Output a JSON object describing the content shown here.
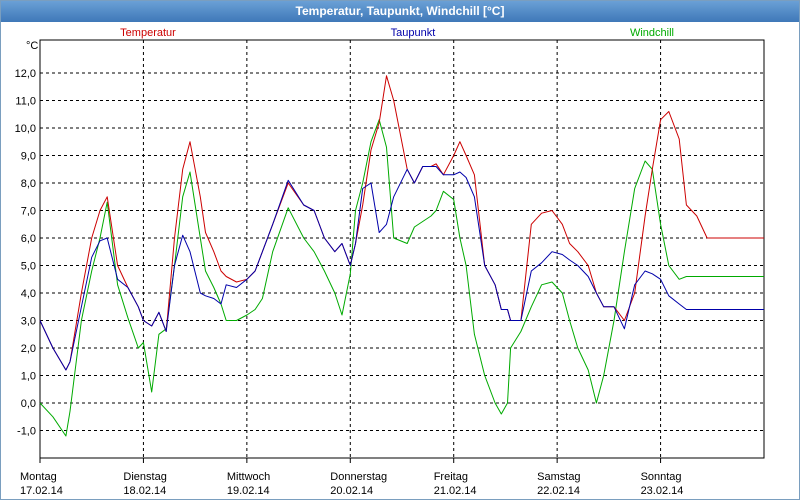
{
  "window": {
    "title": "Temperatur, Taupunkt, Windchill [°C]"
  },
  "chart_data": {
    "type": "line",
    "title": "Temperatur, Taupunkt, Windchill [°C]",
    "ylabel": "°C",
    "ylim": [
      -2.0,
      13.2
    ],
    "grid": true,
    "y_ticks": [
      "12,0",
      "11,0",
      "10,0",
      "9,0",
      "8,0",
      "7,0",
      "6,0",
      "5,0",
      "4,0",
      "3,0",
      "2,0",
      "1,0",
      "0,0",
      "-1,0"
    ],
    "x_range_days": [
      0,
      7
    ],
    "days": [
      {
        "day": "Montag",
        "date": "17.02.14"
      },
      {
        "day": "Dienstag",
        "date": "18.02.14"
      },
      {
        "day": "Mittwoch",
        "date": "19.02.14"
      },
      {
        "day": "Donnerstag",
        "date": "20.02.14"
      },
      {
        "day": "Freitag",
        "date": "21.02.14"
      },
      {
        "day": "Samstag",
        "date": "22.02.14"
      },
      {
        "day": "Sonntag",
        "date": "23.02.14"
      }
    ],
    "series": [
      {
        "name": "Temperatur",
        "color": "#cc0000",
        "x": [
          0.0,
          0.125,
          0.25,
          0.29,
          0.4,
          0.5,
          0.58,
          0.65,
          0.75,
          0.85,
          0.95,
          1.0,
          1.08,
          1.15,
          1.22,
          1.3,
          1.38,
          1.45,
          1.55,
          1.6,
          1.68,
          1.75,
          1.8,
          1.9,
          2.0,
          2.08,
          2.15,
          2.25,
          2.4,
          2.55,
          2.65,
          2.75,
          2.85,
          2.92,
          3.0,
          3.05,
          3.12,
          3.2,
          3.28,
          3.35,
          3.42,
          3.55,
          3.62,
          3.7,
          3.78,
          3.83,
          3.9,
          4.0,
          4.06,
          4.12,
          4.2,
          4.3,
          4.4,
          4.46,
          4.52,
          4.55,
          4.65,
          4.75,
          4.85,
          4.95,
          5.05,
          5.12,
          5.2,
          5.3,
          5.38,
          5.45,
          5.55,
          5.65,
          5.75,
          5.85,
          5.92,
          6.0,
          6.08,
          6.18,
          6.25,
          6.35,
          6.45,
          6.55,
          6.65,
          6.75,
          6.82,
          6.9,
          7.0
        ],
        "y": [
          3.0,
          2.0,
          1.2,
          1.5,
          4.0,
          6.0,
          7.0,
          7.5,
          5.0,
          4.2,
          3.5,
          3.0,
          2.8,
          3.3,
          2.6,
          6.0,
          8.5,
          9.5,
          7.5,
          6.2,
          5.5,
          4.8,
          4.6,
          4.4,
          4.5,
          4.8,
          5.5,
          6.5,
          8.0,
          7.2,
          7.0,
          6.0,
          5.5,
          5.8,
          5.0,
          5.8,
          7.2,
          9.2,
          10.2,
          11.9,
          11.0,
          8.5,
          8.0,
          8.6,
          8.6,
          8.7,
          8.3,
          9.0,
          9.5,
          9.0,
          8.3,
          5.0,
          4.3,
          3.4,
          3.4,
          3.0,
          3.0,
          6.5,
          6.9,
          7.0,
          6.5,
          5.8,
          5.5,
          5.0,
          4.0,
          3.5,
          3.5,
          3.0,
          4.0,
          6.8,
          8.5,
          10.3,
          10.6,
          9.6,
          7.2,
          6.8,
          6.0,
          6.0,
          6.0,
          6.0,
          6.0,
          6.0,
          6.0
        ]
      },
      {
        "name": "Taupunkt",
        "color": "#0000aa",
        "x": [
          0.0,
          0.125,
          0.25,
          0.29,
          0.4,
          0.5,
          0.58,
          0.65,
          0.75,
          0.85,
          0.95,
          1.0,
          1.08,
          1.15,
          1.22,
          1.3,
          1.38,
          1.45,
          1.55,
          1.6,
          1.68,
          1.75,
          1.8,
          1.9,
          2.0,
          2.08,
          2.15,
          2.25,
          2.4,
          2.55,
          2.65,
          2.75,
          2.85,
          2.92,
          3.0,
          3.05,
          3.12,
          3.2,
          3.28,
          3.35,
          3.42,
          3.55,
          3.62,
          3.7,
          3.78,
          3.83,
          3.9,
          4.0,
          4.06,
          4.12,
          4.2,
          4.3,
          4.4,
          4.46,
          4.52,
          4.55,
          4.65,
          4.75,
          4.85,
          4.95,
          5.05,
          5.12,
          5.2,
          5.3,
          5.38,
          5.45,
          5.55,
          5.65,
          5.75,
          5.85,
          5.92,
          6.0,
          6.08,
          6.18,
          6.25,
          6.35,
          6.45,
          6.55,
          6.65,
          6.75,
          6.82,
          6.9,
          7.0
        ],
        "y": [
          3.0,
          2.0,
          1.2,
          1.5,
          3.5,
          5.3,
          5.9,
          6.0,
          4.5,
          4.2,
          3.5,
          3.0,
          2.8,
          3.3,
          2.6,
          5.0,
          6.1,
          5.5,
          4.0,
          3.9,
          3.8,
          3.6,
          4.3,
          4.2,
          4.5,
          4.8,
          5.5,
          6.5,
          8.1,
          7.2,
          7.0,
          6.0,
          5.5,
          5.8,
          5.0,
          5.8,
          7.8,
          8.0,
          6.2,
          6.5,
          7.5,
          8.5,
          8.0,
          8.6,
          8.6,
          8.6,
          8.3,
          8.3,
          8.4,
          8.2,
          7.5,
          5.0,
          4.3,
          3.4,
          3.4,
          3.0,
          3.0,
          4.8,
          5.1,
          5.5,
          5.4,
          5.2,
          5.0,
          4.6,
          4.0,
          3.5,
          3.5,
          2.7,
          4.3,
          4.8,
          4.7,
          4.5,
          3.9,
          3.6,
          3.4,
          3.4,
          3.4,
          3.4,
          3.4,
          3.4,
          3.4,
          3.4,
          3.4
        ]
      },
      {
        "name": "Windchill",
        "color": "#00aa00",
        "x": [
          0.0,
          0.125,
          0.25,
          0.29,
          0.4,
          0.5,
          0.58,
          0.65,
          0.75,
          0.85,
          0.95,
          1.0,
          1.08,
          1.15,
          1.22,
          1.3,
          1.38,
          1.45,
          1.55,
          1.6,
          1.68,
          1.75,
          1.8,
          1.9,
          2.0,
          2.08,
          2.15,
          2.25,
          2.4,
          2.55,
          2.65,
          2.75,
          2.85,
          2.92,
          3.0,
          3.05,
          3.12,
          3.2,
          3.28,
          3.35,
          3.42,
          3.55,
          3.62,
          3.7,
          3.78,
          3.83,
          3.9,
          4.0,
          4.06,
          4.12,
          4.2,
          4.3,
          4.4,
          4.46,
          4.52,
          4.55,
          4.65,
          4.75,
          4.85,
          4.95,
          5.05,
          5.12,
          5.2,
          5.3,
          5.38,
          5.45,
          5.55,
          5.65,
          5.75,
          5.85,
          5.92,
          6.0,
          6.08,
          6.18,
          6.25,
          6.35,
          6.45,
          6.55,
          6.65,
          6.75,
          6.82,
          6.9,
          7.0
        ],
        "y": [
          0.0,
          -0.5,
          -1.2,
          -0.3,
          3.0,
          4.8,
          6.0,
          7.3,
          4.3,
          3.1,
          2.0,
          2.2,
          0.4,
          2.5,
          2.7,
          5.0,
          7.5,
          8.4,
          6.0,
          4.8,
          4.2,
          3.6,
          3.0,
          3.0,
          3.2,
          3.4,
          3.8,
          5.5,
          7.1,
          6.0,
          5.5,
          4.8,
          4.0,
          3.2,
          4.7,
          7.0,
          8.0,
          9.5,
          10.3,
          9.3,
          6.0,
          5.8,
          6.4,
          6.6,
          6.8,
          7.0,
          7.7,
          7.4,
          6.0,
          5.0,
          2.5,
          1.0,
          0.0,
          -0.4,
          0.0,
          2.0,
          2.6,
          3.5,
          4.3,
          4.4,
          4.0,
          3.0,
          2.0,
          1.2,
          0.0,
          1.0,
          3.0,
          5.5,
          7.8,
          8.8,
          8.5,
          6.5,
          5.0,
          4.5,
          4.6,
          4.6,
          4.6,
          4.6,
          4.6,
          4.6,
          4.6,
          4.6,
          4.6
        ]
      }
    ]
  }
}
